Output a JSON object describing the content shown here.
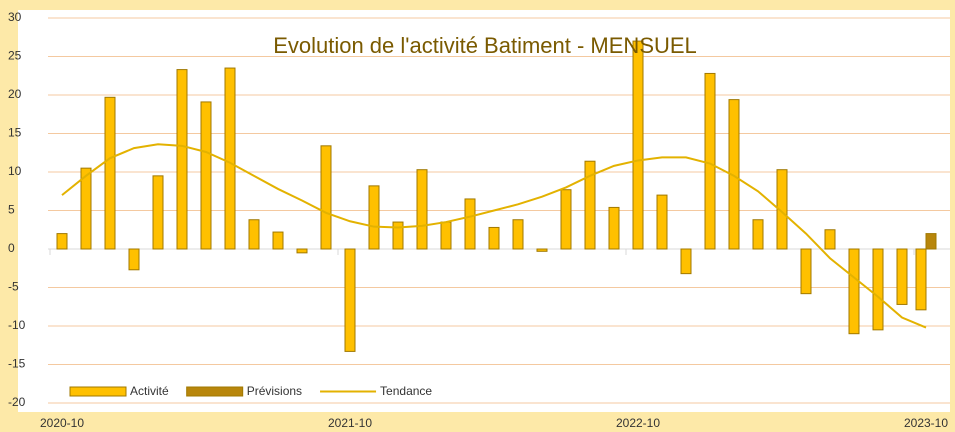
{
  "chart_data": {
    "type": "bar",
    "title": "Evolution  de l'activité  Batiment - MENSUEL",
    "categories": [
      "2020-10",
      null,
      null,
      null,
      null,
      null,
      null,
      null,
      null,
      null,
      null,
      null,
      "2021-10",
      null,
      null,
      null,
      null,
      null,
      null,
      null,
      null,
      null,
      null,
      null,
      "2022-10",
      null,
      null,
      null,
      null,
      null,
      null,
      null,
      null,
      null,
      null,
      null,
      "2023-10"
    ],
    "series": [
      {
        "name": "Activité",
        "type": "bar",
        "color": "#ffc000",
        "values": [
          2,
          10.5,
          19.7,
          -2.7,
          9.5,
          23.3,
          19.1,
          23.5,
          3.8,
          2.2,
          -0.5,
          13.4,
          -13.3,
          8.2,
          3.5,
          10.3,
          3.5,
          6.5,
          2.8,
          3.8,
          -0.3,
          7.7,
          11.4,
          5.4,
          27,
          7,
          -3.2,
          22.8,
          19.4,
          3.8,
          10.3,
          -5.8,
          2.5,
          -11,
          -10.5,
          -7.2,
          -7.9
        ]
      },
      {
        "name": "Prévisions",
        "type": "bar",
        "color": "#b8860b",
        "values": [
          null,
          null,
          null,
          null,
          null,
          null,
          null,
          null,
          null,
          null,
          null,
          null,
          null,
          null,
          null,
          null,
          null,
          null,
          null,
          null,
          null,
          null,
          null,
          null,
          null,
          null,
          null,
          null,
          null,
          null,
          null,
          null,
          null,
          null,
          null,
          null,
          2
        ]
      },
      {
        "name": "Tendance",
        "type": "line",
        "color": "#e3b200",
        "values": [
          7,
          9.5,
          11.8,
          13.1,
          13.6,
          13.4,
          12.6,
          11.2,
          9.5,
          7.8,
          6.3,
          4.7,
          3.6,
          2.9,
          2.8,
          3.0,
          3.5,
          4.2,
          5.0,
          5.8,
          6.8,
          8.0,
          9.5,
          10.8,
          11.5,
          11.9,
          11.9,
          11.1,
          9.5,
          7.5,
          4.8,
          2,
          -1.2,
          -3.7,
          -6.2,
          -8.9,
          -10.2
        ]
      }
    ],
    "ylim": [
      -20,
      30
    ],
    "yticks": [
      -20,
      -15,
      -10,
      -5,
      0,
      5,
      10,
      15,
      20,
      25,
      30
    ],
    "grid": true
  }
}
